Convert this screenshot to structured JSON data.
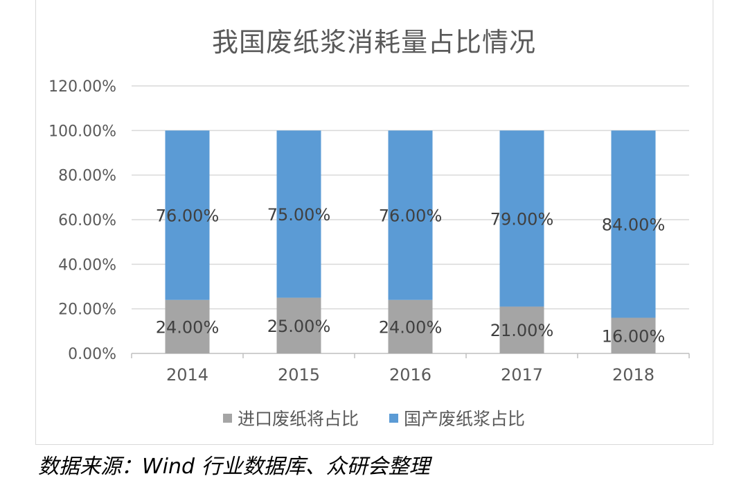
{
  "page": {
    "title": "我国废纸浆消耗量占比情况",
    "source": "数据来源：Wind 行业数据库、众研会整理"
  },
  "chart_data": {
    "type": "bar",
    "stacked": true,
    "title": "我国废纸浆消耗量占比情况",
    "categories": [
      "2014",
      "2015",
      "2016",
      "2017",
      "2018"
    ],
    "series": [
      {
        "name": "进口废纸将占比",
        "values": [
          24.0,
          25.0,
          24.0,
          21.0,
          16.0
        ],
        "labels": [
          "24.00%",
          "25.00%",
          "24.00%",
          "21.00%",
          "16.00%"
        ],
        "color": "#a5a5a5"
      },
      {
        "name": "国产废纸浆占比",
        "values": [
          76.0,
          75.0,
          76.0,
          79.0,
          84.0
        ],
        "labels": [
          "76.00%",
          "75.00%",
          "76.00%",
          "79.00%",
          "84.00%"
        ],
        "color": "#5b9bd5"
      }
    ],
    "yticks": [
      "0.00%",
      "20.00%",
      "40.00%",
      "60.00%",
      "80.00%",
      "100.00%",
      "120.00%"
    ],
    "ylim": [
      0,
      120
    ],
    "grid": true,
    "legend": "bottom"
  }
}
